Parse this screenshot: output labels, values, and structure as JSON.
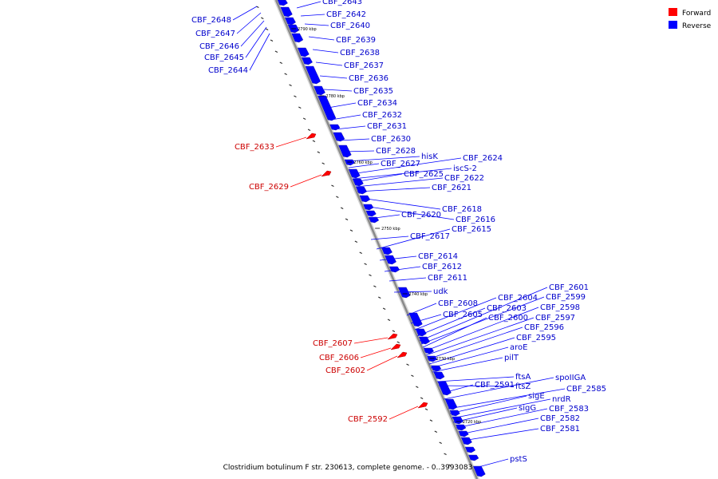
{
  "colors": {
    "forward": "#ff0000",
    "forward_label": "#cc0000",
    "reverse": "#0000ff",
    "reverse_label": "#0000cc",
    "backbone": "#8a8a8a"
  },
  "legend": {
    "forward": "Forward",
    "reverse": "Reverse"
  },
  "caption": "Clostridium botulinum F str. 230613, complete genome. - 0..3993083",
  "ticks": [
    "2790 kbp",
    "2780 kbp",
    "2770 kbp",
    "2760 kbp",
    "2750 kbp",
    "2740 kbp",
    "2730 kbp",
    "2720 kbp"
  ],
  "genes": {
    "reverse": [
      "CBF_2648",
      "CBF_2647",
      "CBF_2646",
      "CBF_2645",
      "CBF_2644",
      "CBF_2643",
      "CBF_2642",
      "CBF_2640",
      "CBF_2639",
      "CBF_2638",
      "CBF_2637",
      "CBF_2636",
      "CBF_2635",
      "CBF_2634",
      "CBF_2632",
      "CBF_2631",
      "CBF_2630",
      "CBF_2628",
      "hisK",
      "CBF_2627",
      "CBF_2624",
      "iscS-2",
      "CBF_2625",
      "CBF_2622",
      "CBF_2621",
      "CBF_2620",
      "CBF_2618",
      "CBF_2616",
      "CBF_2617",
      "CBF_2615",
      "CBF_2614",
      "CBF_2612",
      "CBF_2611",
      "udk",
      "CBF_2608",
      "CBF_2605",
      "CBF_2604",
      "CBF_2603",
      "CBF_2601",
      "CBF_2599",
      "CBF_2600",
      "CBF_2598",
      "CBF_2597",
      "CBF_2596",
      "CBF_2595",
      "aroE",
      "pilT",
      "ftsA",
      "ftsZ",
      "spoIIGA",
      "CBF_2591",
      "CBF_2585",
      "sigE",
      "nrdR",
      "sigG",
      "CBF_2583",
      "CBF_2582",
      "CBF_2581",
      "pstS"
    ],
    "forward": [
      "CBF_2633",
      "CBF_2629",
      "CBF_2607",
      "CBF_2606",
      "CBF_2602",
      "CBF_2592"
    ]
  }
}
